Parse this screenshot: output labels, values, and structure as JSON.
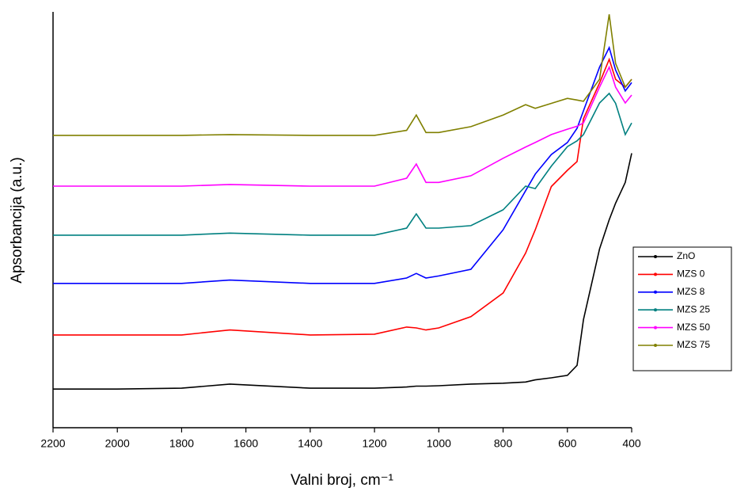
{
  "chart_data": {
    "type": "line",
    "xlabel": "Valni broj, cm⁻¹",
    "ylabel": "Apsorbancija (a.u.)",
    "x": [
      2200,
      2000,
      1800,
      1650,
      1400,
      1200,
      1100,
      1070,
      1040,
      1000,
      900,
      800,
      730,
      700,
      650,
      600,
      570,
      550,
      500,
      470,
      450,
      420,
      400
    ],
    "xlim": [
      2200,
      400
    ],
    "xticks": [
      2200,
      2000,
      1800,
      1600,
      1400,
      1200,
      1000,
      800,
      600,
      400
    ],
    "ylim": [
      0,
      100
    ],
    "legend": "right",
    "series": [
      {
        "name": "ZnO",
        "color": "#000000",
        "values": [
          9.3,
          9.3,
          9.5,
          10.5,
          9.5,
          9.5,
          9.8,
          10,
          10,
          10.1,
          10.5,
          10.7,
          11,
          11.5,
          12,
          12.6,
          15,
          26,
          43,
          50,
          54,
          59,
          66
        ]
      },
      {
        "name": "MZS 0",
        "color": "#ff0000",
        "values": [
          22.3,
          22.3,
          22.3,
          23.5,
          22.3,
          22.5,
          24.2,
          24,
          23.5,
          24,
          26.7,
          32.4,
          42,
          47.6,
          58,
          61.9,
          64,
          74.3,
          82.9,
          88.6,
          83.8,
          81.9,
          83.8
        ]
      },
      {
        "name": "MZS 8",
        "color": "#0000ff",
        "values": [
          34.7,
          34.7,
          34.7,
          35.5,
          34.7,
          34.7,
          36,
          37.1,
          36,
          36.5,
          38.1,
          47.6,
          57,
          61,
          65.7,
          68.6,
          72,
          76.2,
          86.7,
          91.4,
          86,
          81,
          83
        ]
      },
      {
        "name": "MZS 25",
        "color": "#008080",
        "values": [
          46.3,
          46.3,
          46.3,
          46.8,
          46.3,
          46.3,
          48,
          51.4,
          48,
          48,
          48.6,
          52.4,
          58.1,
          57.5,
          62.9,
          67.6,
          69,
          70.5,
          78.1,
          80.4,
          78,
          70.5,
          73.3
        ]
      },
      {
        "name": "MZS 50",
        "color": "#ff00ff",
        "values": [
          58.1,
          58.1,
          58.1,
          58.5,
          58.1,
          58.1,
          60,
          63.4,
          59,
          59,
          60.6,
          64.8,
          67.5,
          68.6,
          70.5,
          71.8,
          72.5,
          73.3,
          81.9,
          86.7,
          81.9,
          78.1,
          80
        ]
      },
      {
        "name": "MZS 75",
        "color": "#808000",
        "values": [
          70.3,
          70.3,
          70.3,
          70.5,
          70.3,
          70.3,
          71.5,
          75.2,
          71,
          71,
          72.4,
          75.2,
          77.7,
          76.8,
          78,
          79.2,
          78.8,
          78.5,
          83.8,
          99.4,
          87.6,
          81.9,
          83.8
        ]
      }
    ]
  }
}
